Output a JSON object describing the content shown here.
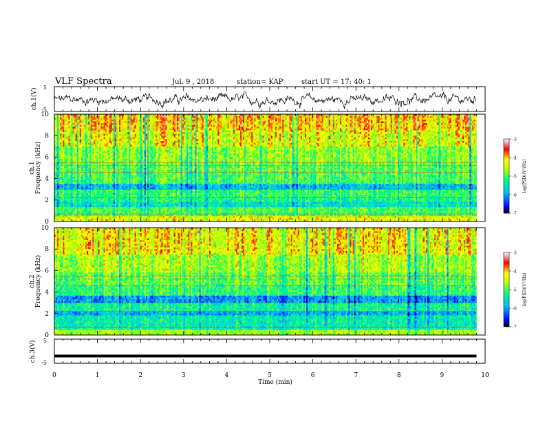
{
  "header": {
    "title": "VLF Spectra",
    "date": "Jul. 9 , 2018",
    "station": "station= KAP",
    "start": "start UT =   17: 40: 1"
  },
  "chart_data": [
    {
      "type": "line",
      "panel": "ch1-waveform",
      "ylabel": "ch.1(V)",
      "ylim": [
        -5,
        5
      ],
      "yticks": [
        "5",
        "-5"
      ],
      "xlim": [
        0,
        10
      ],
      "note": "noisy waveform fluctuating roughly between -4 and +3 V over 0 to 9.8 min"
    },
    {
      "type": "heatmap",
      "panel": "ch1-spectrogram",
      "title": "ch.1",
      "ylabel": "Frequency (kHz)",
      "ylim": [
        0,
        10
      ],
      "yticks": [
        "0",
        "2",
        "4",
        "6",
        "8",
        "10"
      ],
      "xlim": [
        0,
        10
      ],
      "data_extent_min": 9.8,
      "colorbar": {
        "label": "log(PSD)(V²/Hz)",
        "range": [
          -7,
          -3
        ],
        "ticks": [
          "-3",
          "-4",
          "-5",
          "-6",
          "-7"
        ]
      },
      "description_levels": [
        {
          "freq": [
            0,
            0.5
          ],
          "level": -4.3
        },
        {
          "freq": [
            0.5,
            1.3
          ],
          "level": -5.0
        },
        {
          "freq": [
            1.3,
            1.8
          ],
          "level": -5.5
        },
        {
          "freq": [
            1.8,
            2.1
          ],
          "level": -5.2
        },
        {
          "freq": [
            2.1,
            3.0
          ],
          "level": -5.1
        },
        {
          "freq": [
            3.0,
            3.5
          ],
          "level": -5.8
        },
        {
          "freq": [
            3.5,
            4.6
          ],
          "level": -5.0
        },
        {
          "freq": [
            4.6,
            5.5
          ],
          "level": -4.9
        },
        {
          "freq": [
            5.5,
            7.0
          ],
          "level": -4.7
        },
        {
          "freq": [
            7.0,
            8.5
          ],
          "level": -4.3
        },
        {
          "freq": [
            8.5,
            10.0
          ],
          "level": -4.0
        }
      ]
    },
    {
      "type": "heatmap",
      "panel": "ch2-spectrogram",
      "title": "ch.2",
      "ylabel": "Frequency (kHz)",
      "ylim": [
        0,
        10
      ],
      "yticks": [
        "0",
        "2",
        "4",
        "6",
        "8",
        "10"
      ],
      "xlim": [
        0,
        10
      ],
      "data_extent_min": 9.8,
      "colorbar": {
        "label": "log(PSD)(V²/Hz)",
        "range": [
          -7,
          -3
        ],
        "ticks": [
          "-3",
          "-4",
          "-5",
          "-6",
          "-7"
        ]
      },
      "description_levels": [
        {
          "freq": [
            0,
            0.5
          ],
          "level": -4.6
        },
        {
          "freq": [
            0.5,
            1.8
          ],
          "level": -5.4
        },
        {
          "freq": [
            1.8,
            2.2
          ],
          "level": -5.9
        },
        {
          "freq": [
            2.2,
            3.0
          ],
          "level": -5.3
        },
        {
          "freq": [
            3.0,
            3.6
          ],
          "level": -6.0
        },
        {
          "freq": [
            3.6,
            4.6
          ],
          "level": -5.1
        },
        {
          "freq": [
            4.6,
            5.8
          ],
          "level": -4.9
        },
        {
          "freq": [
            5.8,
            7.5
          ],
          "level": -4.6
        },
        {
          "freq": [
            7.5,
            10.0
          ],
          "level": -4.2
        }
      ]
    },
    {
      "type": "line",
      "panel": "ch3-waveform",
      "ylabel": "ch.3(V)",
      "ylim": [
        -5,
        5
      ],
      "yticks": [
        "5",
        "-5"
      ],
      "xlim": [
        0,
        10
      ],
      "series": [
        {
          "x": [
            0,
            9.8
          ],
          "y": [
            -2,
            -2
          ]
        }
      ]
    }
  ],
  "xaxis": {
    "label": "Time (min)",
    "ticks": [
      "0",
      "1",
      "2",
      "3",
      "4",
      "5",
      "6",
      "7",
      "8",
      "9",
      "10"
    ]
  }
}
